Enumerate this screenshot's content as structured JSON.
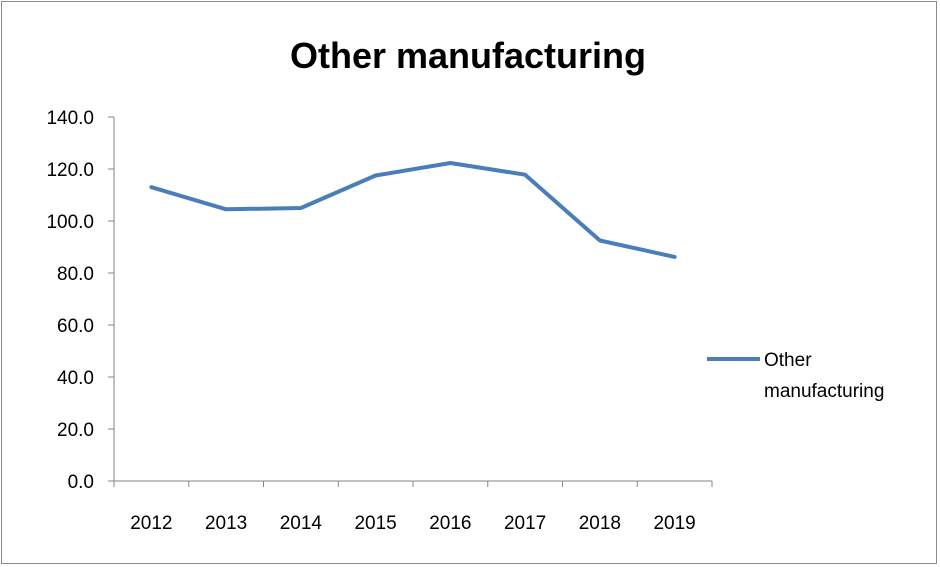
{
  "chart_data": {
    "type": "line",
    "title": "Other manufacturing",
    "categories": [
      "2012",
      "2013",
      "2014",
      "2015",
      "2016",
      "2017",
      "2018",
      "2019"
    ],
    "series": [
      {
        "name": "Other manufacturing",
        "values": [
          113.0,
          104.5,
          105.0,
          117.5,
          122.3,
          117.8,
          92.5,
          86.2
        ],
        "color": "#4a7ebb"
      }
    ],
    "y_ticks": [
      "0.0",
      "20.0",
      "40.0",
      "60.0",
      "80.0",
      "100.0",
      "120.0",
      "140.0"
    ],
    "ylim": [
      0,
      140
    ],
    "legend": {
      "position": "right",
      "label_lines": [
        "Other",
        "manufacturing"
      ]
    },
    "grid": false
  }
}
